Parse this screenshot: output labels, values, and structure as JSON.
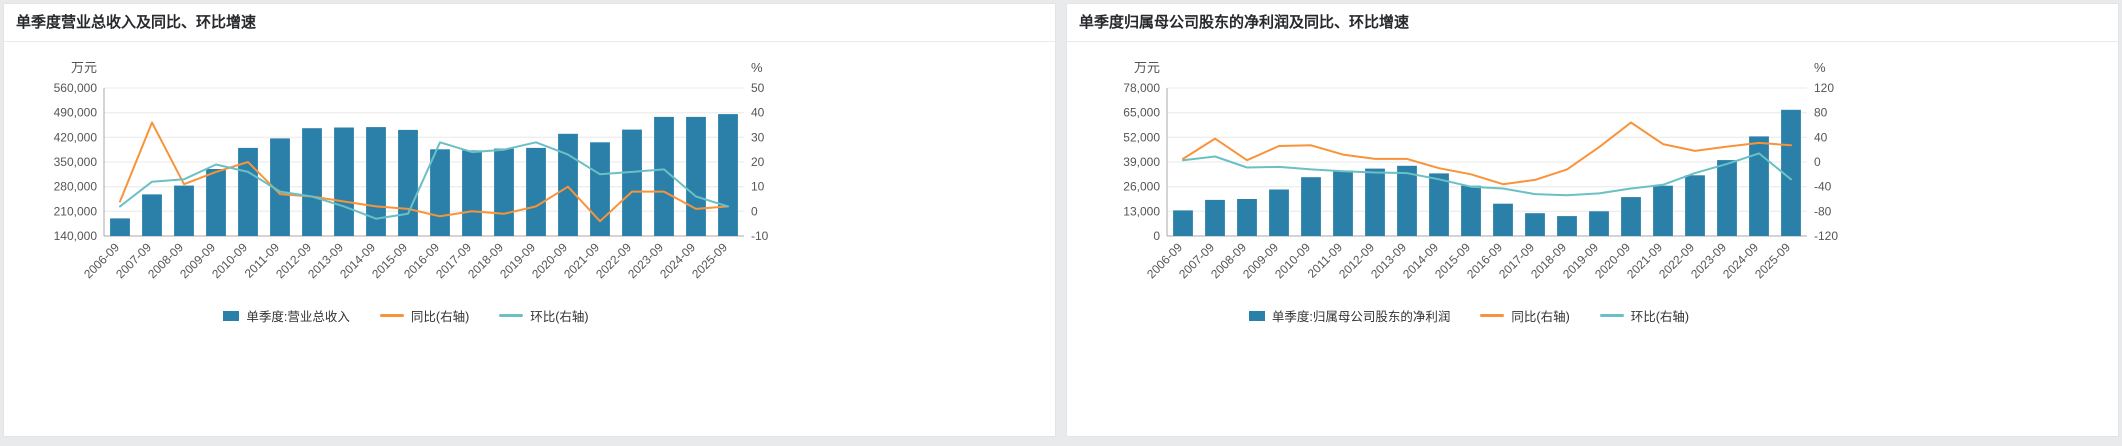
{
  "page_background": "#e9eaec",
  "chart_data": [
    {
      "type": "bar+line",
      "title": "单季度营业总收入及同比、环比增速",
      "categories": [
        "2006-09",
        "2007-09",
        "2008-09",
        "2009-09",
        "2010-09",
        "2011-09",
        "2012-09",
        "2013-09",
        "2014-09",
        "2015-09",
        "2016-09",
        "2017-09",
        "2018-09",
        "2019-09",
        "2020-09",
        "2021-09",
        "2022-09",
        "2023-09",
        "2024-09",
        "2025-09"
      ],
      "series": [
        {
          "name": "单季度:营业总收入",
          "type": "bar",
          "axis": "left",
          "color": "#2a80a8",
          "values": [
            190000,
            258000,
            283000,
            330000,
            390000,
            417000,
            446000,
            448000,
            449000,
            441000,
            386000,
            383000,
            388000,
            390000,
            430000,
            406000,
            442000,
            478000,
            478000,
            486000
          ]
        },
        {
          "name": "同比(右轴)",
          "type": "line",
          "axis": "right",
          "color": "#f9933a",
          "values": [
            4,
            36,
            11,
            16,
            20,
            7,
            6,
            4,
            2,
            1,
            -2,
            0,
            -1,
            2,
            10,
            -4,
            8,
            8,
            1,
            2
          ]
        },
        {
          "name": "环比(右轴)",
          "type": "line",
          "axis": "right",
          "color": "#6ac0c4",
          "values": [
            2,
            12,
            13,
            19,
            16,
            8,
            6,
            2,
            -3,
            -1,
            28,
            24,
            25,
            28,
            23,
            15,
            16,
            17,
            6,
            2
          ]
        }
      ],
      "left_axis": {
        "unit": "万元",
        "range": [
          140000,
          560000
        ],
        "ticks": [
          140000,
          210000,
          280000,
          350000,
          420000,
          490000,
          560000
        ]
      },
      "right_axis": {
        "unit": "%",
        "range": [
          -10,
          50
        ],
        "ticks": [
          -10,
          0,
          10,
          20,
          30,
          40,
          50
        ]
      },
      "grid": true,
      "legend_position": "bottom"
    },
    {
      "type": "bar+line",
      "title": "单季度归属母公司股东的净利润及同比、环比增速",
      "categories": [
        "2006-09",
        "2007-09",
        "2008-09",
        "2009-09",
        "2010-09",
        "2011-09",
        "2012-09",
        "2013-09",
        "2014-09",
        "2015-09",
        "2016-09",
        "2017-09",
        "2018-09",
        "2019-09",
        "2020-09",
        "2021-09",
        "2022-09",
        "2023-09",
        "2024-09",
        "2025-09"
      ],
      "series": [
        {
          "name": "单季度:归属母公司股东的净利润",
          "type": "bar",
          "axis": "left",
          "color": "#2a80a8",
          "values": [
            13500,
            19000,
            19500,
            24500,
            31000,
            34500,
            35500,
            37000,
            33000,
            26500,
            17000,
            12000,
            10500,
            13000,
            20500,
            26500,
            32000,
            40000,
            52500,
            66500
          ]
        },
        {
          "name": "同比(右轴)",
          "type": "line",
          "axis": "right",
          "color": "#f9933a",
          "values": [
            5,
            38,
            3,
            26,
            27,
            12,
            5,
            5,
            -10,
            -20,
            -36,
            -29,
            -12,
            24,
            64,
            29,
            18,
            25,
            31,
            27
          ]
        },
        {
          "name": "环比(右轴)",
          "type": "line",
          "axis": "right",
          "color": "#6ac0c4",
          "values": [
            3,
            9,
            -9,
            -8,
            -12,
            -15,
            -17,
            -18,
            -28,
            -40,
            -43,
            -52,
            -54,
            -51,
            -43,
            -37,
            -18,
            -3,
            14,
            -28
          ]
        }
      ],
      "left_axis": {
        "unit": "万元",
        "range": [
          0,
          78000
        ],
        "ticks": [
          0,
          13000,
          26000,
          39000,
          52000,
          65000,
          78000
        ]
      },
      "right_axis": {
        "unit": "%",
        "range": [
          -120,
          120
        ],
        "ticks": [
          -120,
          -80,
          -40,
          0,
          40,
          80,
          120
        ]
      },
      "grid": true,
      "legend_position": "bottom"
    }
  ]
}
